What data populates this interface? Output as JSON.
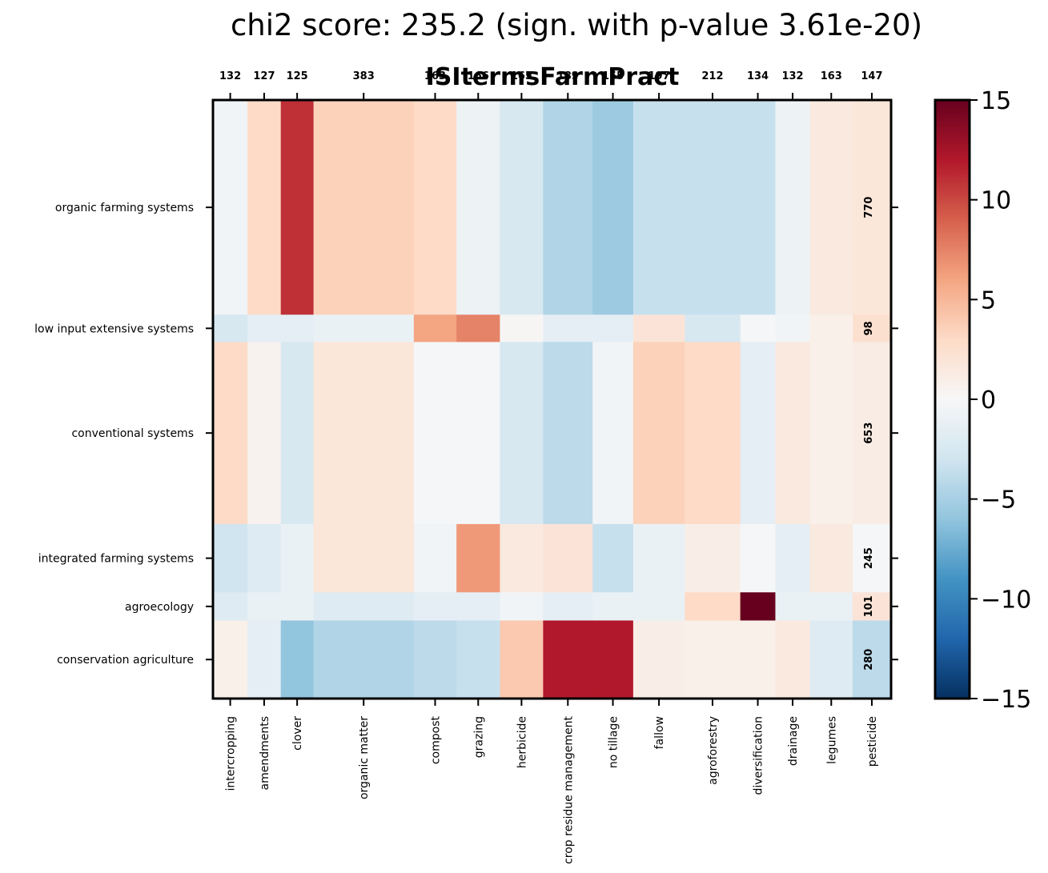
{
  "chart_data": {
    "type": "heatmap",
    "title": "chi2 score: 235.2 (sign. with p-value 3.61e-20)",
    "subtitle": "ISItermsFarmPract",
    "columns": [
      {
        "label": "intercropping",
        "count": "132"
      },
      {
        "label": "amendments",
        "count": "127"
      },
      {
        "label": "clover",
        "count": "125"
      },
      {
        "label": "organic matter",
        "count": "383"
      },
      {
        "label": "compost",
        "count": "163"
      },
      {
        "label": "grazing",
        "count": "166"
      },
      {
        "label": "herbicide",
        "count": "165"
      },
      {
        "label": "crop residue management",
        "count": "189"
      },
      {
        "label": "no tillage",
        "count": "155"
      },
      {
        "label": "fallow",
        "count": "197"
      },
      {
        "label": "agroforestry",
        "count": "212"
      },
      {
        "label": "diversification",
        "count": "134"
      },
      {
        "label": "drainage",
        "count": "132"
      },
      {
        "label": "legumes",
        "count": "163"
      },
      {
        "label": "pesticide",
        "count": "147"
      }
    ],
    "rows": [
      {
        "label": "organic farming systems",
        "count": "770"
      },
      {
        "label": "low input extensive systems",
        "count": "98"
      },
      {
        "label": "conventional systems",
        "count": "653"
      },
      {
        "label": "integrated farming systems",
        "count": "245"
      },
      {
        "label": "agroecology",
        "count": "101"
      },
      {
        "label": "conservation agriculture",
        "count": "280"
      }
    ],
    "values": [
      [
        -0.5,
        3.0,
        11.0,
        3.5,
        3.0,
        -0.8,
        -2.5,
        -4.5,
        -5.5,
        -3.5,
        -3.5,
        -3.5,
        -0.8,
        1.5,
        1.8
      ],
      [
        -2.5,
        -1.5,
        -1.5,
        -1.0,
        6.0,
        7.5,
        0.2,
        -1.5,
        -1.5,
        2.0,
        -2.5,
        -0.2,
        -0.5,
        0.8,
        2.5
      ],
      [
        3.0,
        0.5,
        -2.5,
        1.8,
        -0.2,
        -0.2,
        -2.5,
        -4.0,
        -0.5,
        3.5,
        3.0,
        -1.5,
        1.5,
        0.8,
        1.2
      ],
      [
        -3.0,
        -2.0,
        -1.0,
        1.8,
        -0.5,
        6.5,
        1.5,
        2.0,
        -3.5,
        -1.0,
        1.0,
        -0.2,
        -1.5,
        1.5,
        -0.2
      ],
      [
        -2.0,
        -1.0,
        -1.0,
        -2.0,
        -1.5,
        -1.5,
        -0.5,
        -1.5,
        -1.0,
        -1.0,
        3.0,
        15.0,
        -1.0,
        -1.0,
        2.0
      ],
      [
        0.8,
        -1.5,
        -6.0,
        -4.5,
        -4.0,
        -3.5,
        4.0,
        12.0,
        12.0,
        1.0,
        0.8,
        0.8,
        1.5,
        -2.0,
        -4.0
      ]
    ],
    "vmin": -15,
    "vmax": 15,
    "colormap": "RdBu_r",
    "colorbar_ticks": [
      "15",
      "10",
      "5",
      "0",
      "−5",
      "−10",
      "−15"
    ],
    "colorbar_tick_values": [
      15,
      10,
      5,
      0,
      -5,
      -10,
      -15
    ]
  }
}
